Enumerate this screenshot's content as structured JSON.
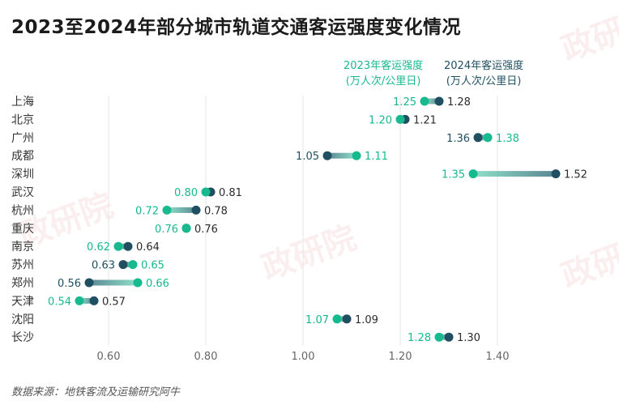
{
  "title": "2023至2024年部分城市轨道交通客运强度变化情况",
  "legend": {
    "series_2023_line1": "2023年客运强度",
    "series_2023_line2": "(万人次/公里日)",
    "series_2024_line1": "2024年客运强度",
    "series_2024_line2": "(万人次/公里日)"
  },
  "source": "数据来源：地铁客流及运输研究阿牛",
  "watermark": "政研院",
  "colors": {
    "series_2023": "#17b98f",
    "series_2024": "#1f4f60",
    "grid": "#e6e6e6",
    "text": "#333333"
  },
  "chart_data": {
    "type": "dumbbell",
    "title": "2023至2024年部分城市轨道交通客运强度变化情况",
    "categories": [
      "上海",
      "北京",
      "广州",
      "成都",
      "深圳",
      "武汉",
      "杭州",
      "重庆",
      "南京",
      "苏州",
      "郑州",
      "天津",
      "沈阳",
      "长沙"
    ],
    "series": [
      {
        "name": "2023年客运强度 (万人次/公里日)",
        "values": [
          1.25,
          1.2,
          1.38,
          1.11,
          1.35,
          0.8,
          0.72,
          0.76,
          0.62,
          0.65,
          0.66,
          0.54,
          1.07,
          1.28
        ]
      },
      {
        "name": "2024年客运强度 (万人次/公里日)",
        "values": [
          1.28,
          1.21,
          1.36,
          1.05,
          1.52,
          0.81,
          0.78,
          0.76,
          0.64,
          0.63,
          0.56,
          0.57,
          1.09,
          1.3
        ]
      }
    ],
    "xticks": [
      "0.60",
      "0.80",
      "1.00",
      "1.20",
      "1.40"
    ],
    "xtick_values": [
      0.6,
      0.8,
      1.0,
      1.2,
      1.4
    ],
    "xlim": [
      0.48,
      1.63
    ],
    "grid": true
  }
}
